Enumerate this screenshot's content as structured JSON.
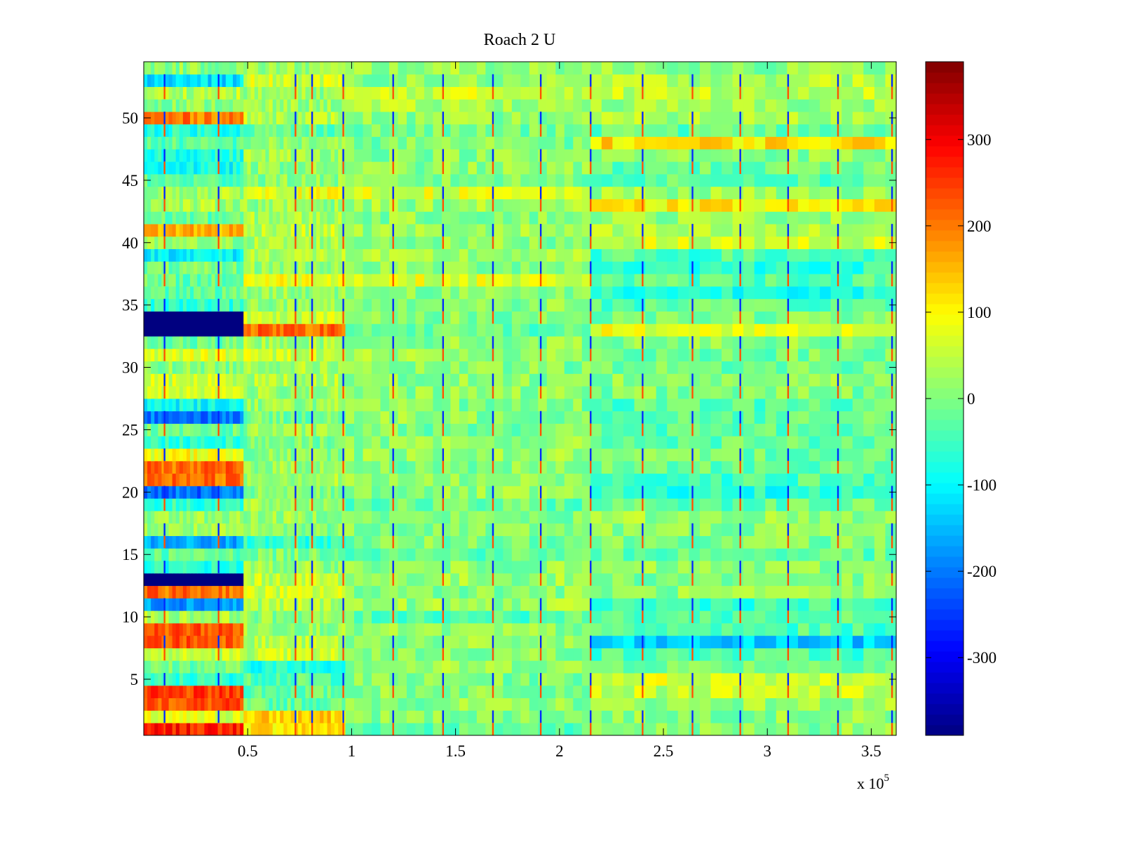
{
  "chart_data": {
    "type": "heatmap",
    "title": "Roach 2 U",
    "xlabel": "",
    "ylabel": "",
    "x_multiplier_label": "x 10",
    "x_multiplier_exponent": "5",
    "xlim": [
      0,
      3.62
    ],
    "ylim": [
      0.5,
      54.5
    ],
    "rows": 54,
    "x_ticks": [
      {
        "value": 0.5,
        "label": "0.5"
      },
      {
        "value": 1,
        "label": "1"
      },
      {
        "value": 1.5,
        "label": "1.5"
      },
      {
        "value": 2,
        "label": "2"
      },
      {
        "value": 2.5,
        "label": "2.5"
      },
      {
        "value": 3,
        "label": "3"
      },
      {
        "value": 3.5,
        "label": "3.5"
      }
    ],
    "y_ticks": [
      {
        "value": 5,
        "label": "5"
      },
      {
        "value": 10,
        "label": "10"
      },
      {
        "value": 15,
        "label": "15"
      },
      {
        "value": 20,
        "label": "20"
      },
      {
        "value": 25,
        "label": "25"
      },
      {
        "value": 30,
        "label": "30"
      },
      {
        "value": 35,
        "label": "35"
      },
      {
        "value": 40,
        "label": "40"
      },
      {
        "value": 45,
        "label": "45"
      },
      {
        "value": 50,
        "label": "50"
      }
    ],
    "colorbar": {
      "colormap": "jet",
      "clim": [
        -390,
        390
      ],
      "ticks": [
        {
          "value": 300,
          "label": "300"
        },
        {
          "value": 200,
          "label": "200"
        },
        {
          "value": 100,
          "label": "100"
        },
        {
          "value": 0,
          "label": "0"
        },
        {
          "value": -100,
          "label": "-100"
        },
        {
          "value": -200,
          "label": "-200"
        },
        {
          "value": -300,
          "label": "-300"
        }
      ]
    },
    "segment_x_bounds": [
      0,
      0.48,
      0.97,
      2.15,
      3.62
    ],
    "row_segment_levels": [
      [
        270,
        120,
        -20,
        10
      ],
      [
        70,
        130,
        10,
        10
      ],
      [
        230,
        -20,
        10,
        20
      ],
      [
        240,
        -20,
        10,
        50
      ],
      [
        -60,
        -30,
        0,
        70
      ],
      [
        -10,
        -70,
        20,
        0
      ],
      [
        50,
        50,
        10,
        -40
      ],
      [
        230,
        40,
        10,
        -140
      ],
      [
        230,
        20,
        10,
        -40
      ],
      [
        30,
        10,
        -30,
        -30
      ],
      [
        -170,
        40,
        20,
        -50
      ],
      [
        210,
        60,
        10,
        10
      ],
      [
        -390,
        50,
        20,
        0
      ],
      [
        -70,
        20,
        10,
        10
      ],
      [
        -20,
        0,
        -20,
        -20
      ],
      [
        -170,
        -60,
        0,
        0
      ],
      [
        20,
        10,
        10,
        10
      ],
      [
        20,
        20,
        0,
        20
      ],
      [
        -60,
        20,
        -20,
        -20
      ],
      [
        -210,
        0,
        10,
        -70
      ],
      [
        210,
        30,
        10,
        -40
      ],
      [
        210,
        20,
        0,
        -20
      ],
      [
        90,
        10,
        20,
        -10
      ],
      [
        -60,
        0,
        10,
        -20
      ],
      [
        -20,
        20,
        0,
        -30
      ],
      [
        -200,
        -10,
        10,
        -20
      ],
      [
        -90,
        20,
        0,
        -30
      ],
      [
        70,
        20,
        10,
        0
      ],
      [
        60,
        40,
        10,
        10
      ],
      [
        10,
        30,
        0,
        -10
      ],
      [
        70,
        60,
        20,
        -10
      ],
      [
        -20,
        30,
        10,
        10
      ],
      [
        -390,
        210,
        -20,
        80
      ],
      [
        -390,
        60,
        0,
        0
      ],
      [
        -60,
        20,
        10,
        -30
      ],
      [
        -20,
        20,
        10,
        -70
      ],
      [
        -20,
        90,
        70,
        -30
      ],
      [
        -10,
        20,
        10,
        -60
      ],
      [
        -100,
        40,
        20,
        -40
      ],
      [
        10,
        30,
        10,
        60
      ],
      [
        160,
        50,
        20,
        30
      ],
      [
        -20,
        30,
        10,
        20
      ],
      [
        30,
        20,
        20,
        100
      ],
      [
        30,
        80,
        70,
        20
      ],
      [
        -30,
        10,
        0,
        -30
      ],
      [
        -90,
        10,
        10,
        -20
      ],
      [
        -70,
        30,
        10,
        10
      ],
      [
        -30,
        10,
        0,
        120
      ],
      [
        -70,
        -20,
        -10,
        -20
      ],
      [
        200,
        40,
        10,
        30
      ],
      [
        10,
        20,
        30,
        20
      ],
      [
        40,
        20,
        60,
        50
      ],
      [
        -120,
        60,
        10,
        40
      ],
      [
        10,
        20,
        20,
        10
      ]
    ],
    "vertical_stripe_x": [
      0.1,
      0.36,
      0.73,
      0.81,
      0.96,
      1.2,
      1.44,
      1.68,
      1.91,
      2.15,
      2.4,
      2.64,
      2.87,
      3.1,
      3.34,
      3.6
    ]
  }
}
